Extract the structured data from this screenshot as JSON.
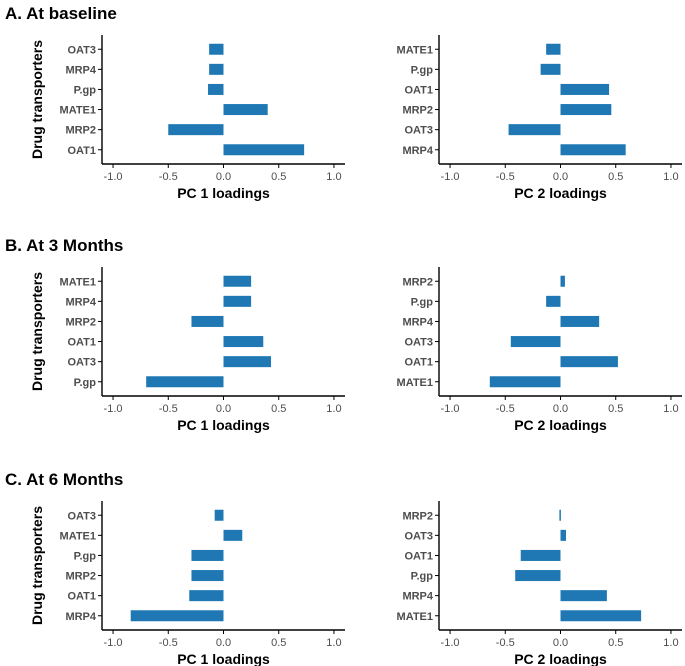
{
  "figure": {
    "bar_color": "#1f78b4",
    "axis_color": "#000000",
    "label_color": "#4d4d4d"
  },
  "rows": [
    {
      "title": "A. At baseline",
      "ylabel": "Drug transporters"
    },
    {
      "title": "B. At 3 Months",
      "ylabel": "Drug transporters"
    },
    {
      "title": "C. At 6 Months",
      "ylabel": "Drug transporters"
    }
  ],
  "chart_data": [
    {
      "type": "bar",
      "orientation": "horizontal",
      "row": 0,
      "col": 0,
      "categories": [
        "OAT3",
        "MRP4",
        "P.gp",
        "MATE1",
        "MRP2",
        "OAT1"
      ],
      "values": [
        -0.13,
        -0.13,
        -0.14,
        0.4,
        -0.5,
        0.73
      ],
      "xlabel": "PC 1 loadings",
      "xlim": [
        -1.1,
        1.1
      ],
      "xticks": [
        -1.0,
        -0.5,
        0.0,
        0.5,
        1.0
      ],
      "xtick_labels": [
        "-1.0",
        "-0.5",
        "0.0",
        "0.5",
        "1.0"
      ]
    },
    {
      "type": "bar",
      "orientation": "horizontal",
      "row": 0,
      "col": 1,
      "categories": [
        "MATE1",
        "P.gp",
        "OAT1",
        "MRP2",
        "OAT3",
        "MRP4"
      ],
      "values": [
        -0.13,
        -0.18,
        0.44,
        0.46,
        -0.47,
        0.59
      ],
      "xlabel": "PC 2 loadings",
      "xlim": [
        -1.1,
        1.1
      ],
      "xticks": [
        -1.0,
        -0.5,
        0.0,
        0.5,
        1.0
      ],
      "xtick_labels": [
        "-1.0",
        "-0.5",
        "0.0",
        "0.5",
        "1.0"
      ]
    },
    {
      "type": "bar",
      "orientation": "horizontal",
      "row": 1,
      "col": 0,
      "categories": [
        "MATE1",
        "MRP4",
        "MRP2",
        "OAT1",
        "OAT3",
        "P.gp"
      ],
      "values": [
        0.25,
        0.25,
        -0.29,
        0.36,
        0.43,
        -0.7
      ],
      "xlabel": "PC 1 loadings",
      "xlim": [
        -1.1,
        1.1
      ],
      "xticks": [
        -1.0,
        -0.5,
        0.0,
        0.5,
        1.0
      ],
      "xtick_labels": [
        "-1.0",
        "-0.5",
        "0.0",
        "0.5",
        "1.0"
      ]
    },
    {
      "type": "bar",
      "orientation": "horizontal",
      "row": 1,
      "col": 1,
      "categories": [
        "MRP2",
        "P.gp",
        "MRP4",
        "OAT3",
        "OAT1",
        "MATE1"
      ],
      "values": [
        0.04,
        -0.13,
        0.35,
        -0.45,
        0.52,
        -0.64
      ],
      "xlabel": "PC 2 loadings",
      "xlim": [
        -1.1,
        1.1
      ],
      "xticks": [
        -1.0,
        -0.5,
        0.0,
        0.5,
        1.0
      ],
      "xtick_labels": [
        "-1.0",
        "-0.5",
        "0.0",
        "0.5",
        "1.0"
      ]
    },
    {
      "type": "bar",
      "orientation": "horizontal",
      "row": 2,
      "col": 0,
      "categories": [
        "OAT3",
        "MATE1",
        "P.gp",
        "MRP2",
        "OAT1",
        "MRP4"
      ],
      "values": [
        -0.08,
        0.17,
        -0.29,
        -0.29,
        -0.31,
        -0.84
      ],
      "xlabel": "PC 1 loadings",
      "xlim": [
        -1.1,
        1.1
      ],
      "xticks": [
        -1.0,
        -0.5,
        0.0,
        0.5,
        1.0
      ],
      "xtick_labels": [
        "-1.0",
        "-0.5",
        "0.0",
        "0.5",
        "1.0"
      ]
    },
    {
      "type": "bar",
      "orientation": "horizontal",
      "row": 2,
      "col": 1,
      "categories": [
        "MRP2",
        "OAT3",
        "OAT1",
        "P.gp",
        "MRP4",
        "MATE1"
      ],
      "values": [
        -0.01,
        0.05,
        -0.36,
        -0.41,
        0.42,
        0.73
      ],
      "xlabel": "PC 2 loadings",
      "xlim": [
        -1.1,
        1.1
      ],
      "xticks": [
        -1.0,
        -0.5,
        0.0,
        0.5,
        1.0
      ],
      "xtick_labels": [
        "-1.0",
        "-0.5",
        "0.0",
        "0.5",
        "1.0"
      ]
    }
  ]
}
